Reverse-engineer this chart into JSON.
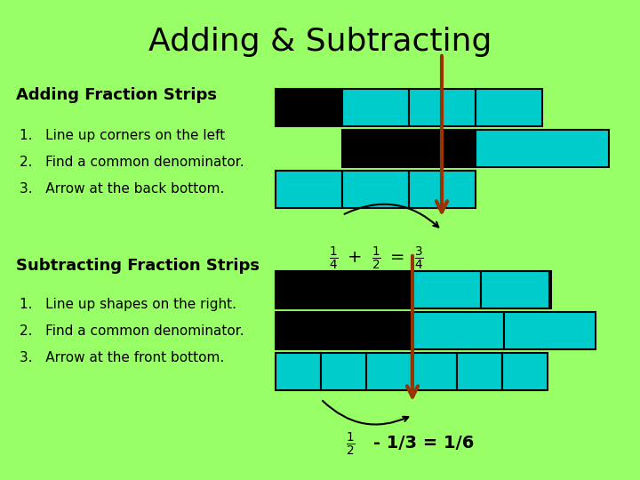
{
  "bg_color": "#99ff66",
  "title": "Adding & Subtracting",
  "teal": "#00CCCC",
  "black": "#000000",
  "red_arrow": "#993300",
  "add_label": "Adding Fraction Strips",
  "add_steps": [
    "1.   Line up corners on the left",
    "2.   Find a common denominator.",
    "3.   Arrow at the back bottom."
  ],
  "sub_label": "Subtracting Fraction Strips",
  "sub_steps": [
    "1.   Line up shapes on the right.",
    "2.   Find a common denominator.",
    "3.   Arrow at the front bottom."
  ]
}
